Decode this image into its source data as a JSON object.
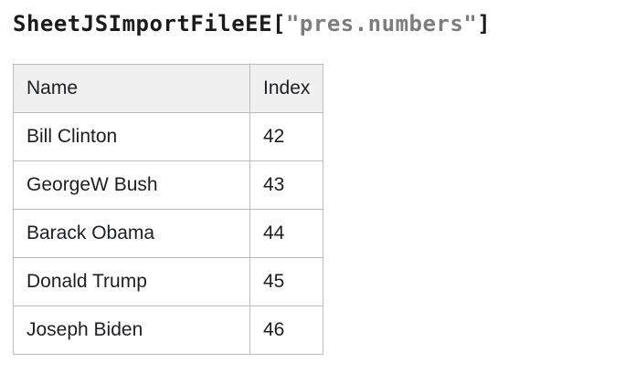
{
  "title": {
    "prefix": "SheetJSImportFileEE[",
    "string_value": "\"pres.numbers\"",
    "suffix": "]"
  },
  "table": {
    "columns": [
      "Name",
      "Index"
    ],
    "rows": [
      {
        "name": "Bill Clinton",
        "index": "42"
      },
      {
        "name": "GeorgeW Bush",
        "index": "43"
      },
      {
        "name": "Barack Obama",
        "index": "44"
      },
      {
        "name": "Donald Trump",
        "index": "45"
      },
      {
        "name": "Joseph Biden",
        "index": "46"
      }
    ]
  },
  "colors": {
    "title_text": "#1b1b1b",
    "title_string": "#7d7d7d",
    "table_border": "#bdbdbd",
    "header_background": "#f0f0f0",
    "body_text": "#1c1e21",
    "page_background": "#ffffff"
  }
}
